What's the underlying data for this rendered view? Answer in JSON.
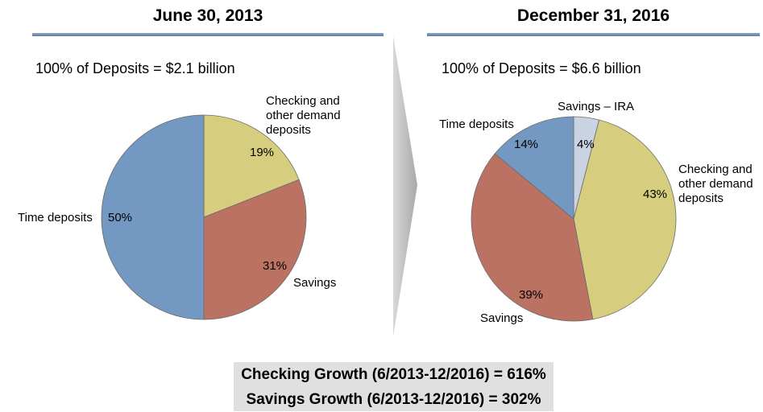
{
  "chart_data": [
    {
      "type": "pie",
      "title": "June 30, 2013",
      "subtitle": "100% of Deposits = $2.1 billion",
      "categories": [
        "Checking and other demand deposits",
        "Savings",
        "Time deposits"
      ],
      "values": [
        19,
        31,
        50
      ],
      "labels": [
        "19%",
        "31%",
        "50%"
      ],
      "colors": [
        "#d6cd7e",
        "#bb7262",
        "#7399c2"
      ]
    },
    {
      "type": "pie",
      "title": "December 31, 2016",
      "subtitle": "100% of Deposits = $6.6 billion",
      "categories": [
        "Savings – IRA",
        "Checking and other demand deposits",
        "Savings",
        "Time deposits"
      ],
      "values": [
        4,
        43,
        39,
        14
      ],
      "labels": [
        "4%",
        "43%",
        "39%",
        "14%"
      ],
      "colors": [
        "#c9d3e3",
        "#d6cd7e",
        "#bb7262",
        "#7399c2"
      ]
    }
  ],
  "left_labels": {
    "checking": [
      "Checking and",
      "other demand",
      "deposits"
    ],
    "savings": "Savings",
    "time": "Time deposits"
  },
  "right_labels": {
    "ira": "Savings – IRA",
    "checking": [
      "Checking and",
      "other demand",
      "deposits"
    ],
    "savings": "Savings",
    "time": "Time deposits"
  },
  "footer": {
    "checking_growth": "Checking Growth (6/2013-12/2016) = 616%",
    "savings_growth": "Savings Growth (6/2013-12/2016) = 302%"
  }
}
